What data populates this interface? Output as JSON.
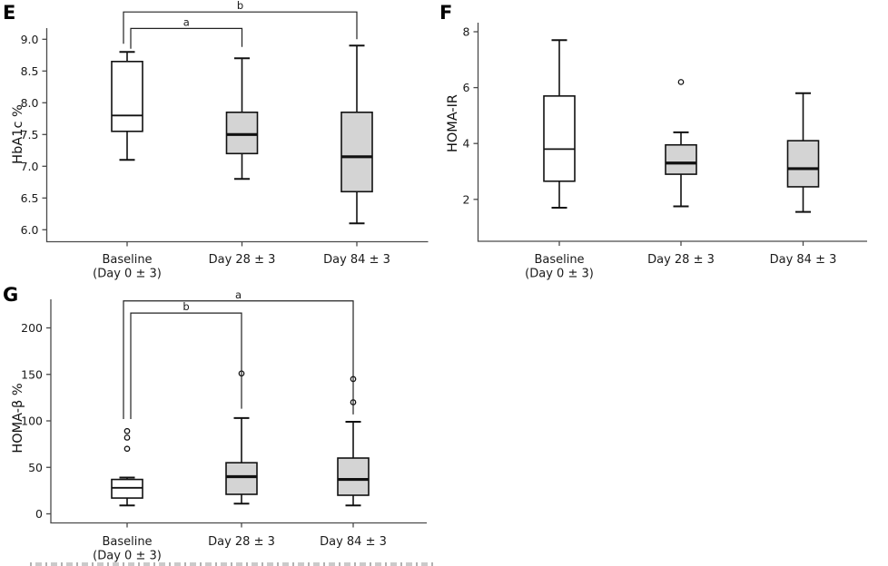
{
  "colors": {
    "box_fill_gray": "#d4d4d4",
    "box_fill_white": "#ffffff",
    "box_stroke": "#111111",
    "axis": "#4a4a4a",
    "text": "#1a1a1a",
    "background": "#ffffff"
  },
  "chart_data": [
    {
      "panel": "E",
      "type": "box",
      "ylabel": "HbA1c %",
      "ylim": [
        5.8,
        9.2
      ],
      "grid": false,
      "tick_values": [
        9.0,
        8.5,
        8.0,
        7.5,
        7.0,
        6.5,
        6.0
      ],
      "tick_labels": [
        "9.0",
        "8.5",
        "8.0",
        "7.5",
        "7.0",
        "6.5",
        "6.0"
      ],
      "categories": [
        {
          "line1": "Baseline",
          "line2": "(Day 0 ± 3)"
        },
        {
          "line1": "Day 28 ± 3",
          "line2": ""
        },
        {
          "line1": "Day 84 ± 3",
          "line2": ""
        }
      ],
      "boxes": [
        {
          "whisker_low": 7.1,
          "q1": 7.55,
          "median": 7.8,
          "q3": 8.65,
          "whisker_high": 8.8,
          "outliers": [],
          "fill": "white"
        },
        {
          "whisker_low": 6.8,
          "q1": 7.2,
          "median": 7.5,
          "q3": 7.85,
          "whisker_high": 8.7,
          "outliers": [],
          "fill": "gray"
        },
        {
          "whisker_low": 6.1,
          "q1": 6.6,
          "median": 7.15,
          "q3": 7.85,
          "whisker_high": 8.9,
          "outliers": [],
          "fill": "gray"
        }
      ],
      "brackets": [
        {
          "label": "b",
          "from": 0,
          "to": 2,
          "y": 9.43,
          "drop_from": 8.93,
          "drop_to": 9.0
        },
        {
          "label": "a",
          "from": 0,
          "to": 1,
          "y": 9.17,
          "drop_from": 8.85,
          "drop_to": 8.88
        }
      ]
    },
    {
      "panel": "F",
      "type": "box",
      "ylabel": "HOMA-IR",
      "ylim": [
        0.6,
        8.3
      ],
      "grid": false,
      "tick_values": [
        8,
        6,
        4,
        2
      ],
      "tick_labels": [
        "8",
        "6",
        "4",
        "2"
      ],
      "categories": [
        {
          "line1": "Baseline",
          "line2": "(Day 0 ± 3)"
        },
        {
          "line1": "Day 28 ± 3",
          "line2": ""
        },
        {
          "line1": "Day 84 ± 3",
          "line2": ""
        }
      ],
      "boxes": [
        {
          "whisker_low": 1.7,
          "q1": 2.65,
          "median": 3.8,
          "q3": 5.7,
          "whisker_high": 7.7,
          "outliers": [],
          "fill": "white"
        },
        {
          "whisker_low": 1.75,
          "q1": 2.9,
          "median": 3.3,
          "q3": 3.95,
          "whisker_high": 4.4,
          "outliers": [
            6.2
          ],
          "fill": "gray"
        },
        {
          "whisker_low": 1.55,
          "q1": 2.45,
          "median": 3.1,
          "q3": 4.1,
          "whisker_high": 5.8,
          "outliers": [],
          "fill": "gray"
        }
      ],
      "brackets": []
    },
    {
      "panel": "G",
      "type": "box",
      "ylabel": "HOMA-β %",
      "ylim": [
        -10,
        230
      ],
      "grid": false,
      "tick_values": [
        200,
        150,
        100,
        50,
        0
      ],
      "tick_labels": [
        "200",
        "150",
        "100",
        "50",
        "0"
      ],
      "categories": [
        {
          "line1": "Baseline",
          "line2": "(Day 0 ± 3)"
        },
        {
          "line1": "Day 28 ± 3",
          "line2": ""
        },
        {
          "line1": "Day 84 ± 3",
          "line2": ""
        }
      ],
      "boxes": [
        {
          "whisker_low": 9,
          "q1": 17,
          "median": 28,
          "q3": 37,
          "whisker_high": 39,
          "outliers": [
            70,
            82,
            89
          ],
          "fill": "white"
        },
        {
          "whisker_low": 11,
          "q1": 21,
          "median": 40,
          "q3": 55,
          "whisker_high": 103,
          "outliers": [
            151
          ],
          "fill": "gray"
        },
        {
          "whisker_low": 9,
          "q1": 20,
          "median": 37,
          "q3": 60,
          "whisker_high": 99,
          "outliers": [
            120,
            145
          ],
          "fill": "gray"
        }
      ],
      "brackets": [
        {
          "label": "a",
          "from": 0,
          "to": 2,
          "y": 229,
          "drop_from": 102,
          "drop_to": 107
        },
        {
          "label": "b",
          "from": 0,
          "to": 1,
          "y": 216,
          "drop_from": 102,
          "drop_to": 113
        }
      ]
    }
  ]
}
